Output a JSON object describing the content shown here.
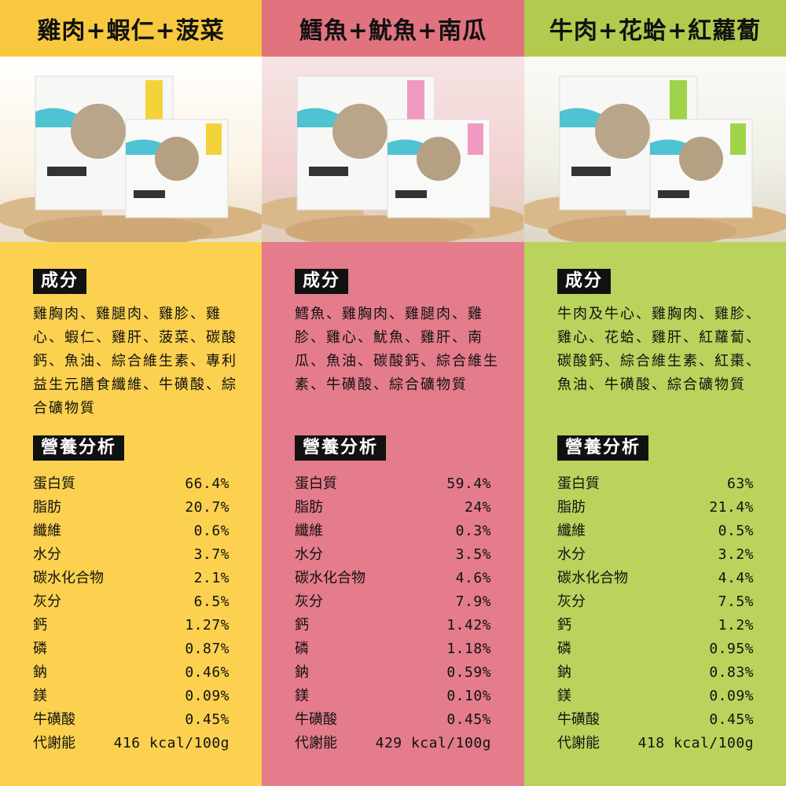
{
  "columns": [
    {
      "title": "雞肉+蝦仁+菠菜",
      "ingredients_heading": "成分",
      "ingredients": "雞胸肉、雞腿肉、雞胗、雞心、蝦仁、雞肝、菠菜、碳酸鈣、魚油、綜合維生素、專利益生元膳食纖維、牛磺酸、綜合礦物質",
      "nutrition_heading": "營養分析",
      "nutrients": [
        [
          "蛋白質",
          "66.4%"
        ],
        [
          "脂肪",
          "20.7%"
        ],
        [
          "纖維",
          "0.6%"
        ],
        [
          "水分",
          "3.7%"
        ],
        [
          "碳水化合物",
          "2.1%"
        ],
        [
          "灰分",
          "6.5%"
        ],
        [
          "鈣",
          "1.27%"
        ],
        [
          "磷",
          "0.87%"
        ],
        [
          "鈉",
          "0.46%"
        ],
        [
          "鎂",
          "0.09%"
        ],
        [
          "牛磺酸",
          "0.45%"
        ],
        [
          "代謝能",
          "416 kcal/100g"
        ]
      ]
    },
    {
      "title": "鱈魚+魷魚+南瓜",
      "ingredients_heading": "成分",
      "ingredients": "鱈魚、雞胸肉、雞腿肉、雞胗、雞心、魷魚、雞肝、南瓜、魚油、碳酸鈣、綜合維生素、牛磺酸、綜合礦物質",
      "nutrition_heading": "營養分析",
      "nutrients": [
        [
          "蛋白質",
          "59.4%"
        ],
        [
          "脂肪",
          "24%"
        ],
        [
          "纖維",
          "0.3%"
        ],
        [
          "水分",
          "3.5%"
        ],
        [
          "碳水化合物",
          "4.6%"
        ],
        [
          "灰分",
          "7.9%"
        ],
        [
          "鈣",
          "1.42%"
        ],
        [
          "磷",
          "1.18%"
        ],
        [
          "鈉",
          "0.59%"
        ],
        [
          "鎂",
          "0.10%"
        ],
        [
          "牛磺酸",
          "0.45%"
        ],
        [
          "代謝能",
          "429 kcal/100g"
        ]
      ]
    },
    {
      "title": "牛肉+花蛤+紅蘿蔔",
      "ingredients_heading": "成分",
      "ingredients": "牛肉及牛心、雞胸肉、雞胗、雞心、花蛤、雞肝、紅蘿蔔、碳酸鈣、綜合維生素、紅棗、魚油、牛磺酸、綜合礦物質",
      "nutrition_heading": "營養分析",
      "nutrients": [
        [
          "蛋白質",
          "63%"
        ],
        [
          "脂肪",
          "21.4%"
        ],
        [
          "纖維",
          "0.5%"
        ],
        [
          "水分",
          "3.2%"
        ],
        [
          "碳水化合物",
          "4.4%"
        ],
        [
          "灰分",
          "7.5%"
        ],
        [
          "鈣",
          "1.2%"
        ],
        [
          "磷",
          "0.95%"
        ],
        [
          "鈉",
          "0.83%"
        ],
        [
          "鎂",
          "0.09%"
        ],
        [
          "牛磺酸",
          "0.45%"
        ],
        [
          "代謝能",
          "418 kcal/100g"
        ]
      ]
    }
  ]
}
